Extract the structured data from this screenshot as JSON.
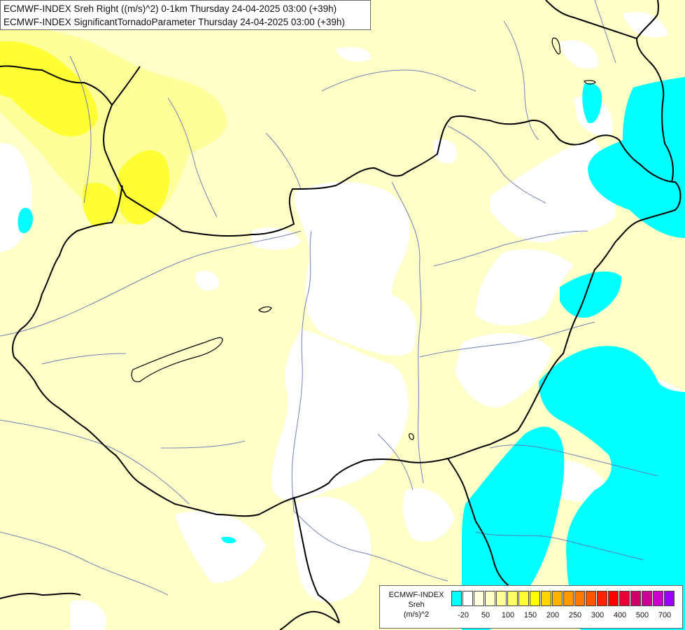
{
  "title": {
    "line1": "ECMWF-INDEX Sreh Right ((m/s)^2) 0-1km Thursday 24-04-2025 03:00 (+39h)",
    "line2": "ECMWF-INDEX SignificantTornadoParameter Thursday 24-04-2025 03:00 (+39h)"
  },
  "legend": {
    "source": "ECMWF-INDEX",
    "variable": "Sreh",
    "unit": "(m/s)^2",
    "colors": [
      "#00ffff",
      "#ffffff",
      "#ffffe0",
      "#ffffc8",
      "#ffff99",
      "#ffff66",
      "#ffff33",
      "#ffff00",
      "#ffd700",
      "#ffb300",
      "#ff9900",
      "#ff7700",
      "#ff5500",
      "#ff2200",
      "#ff0000",
      "#e60033",
      "#cc0066",
      "#cc0099",
      "#cc00cc",
      "#9900ff",
      "#7700cc",
      "#4b0099",
      "#000080"
    ],
    "ticks": [
      {
        "label": "-20",
        "index": 1
      },
      {
        "label": "50",
        "index": 3
      },
      {
        "label": "100",
        "index": 5
      },
      {
        "label": "150",
        "index": 7
      },
      {
        "label": "200",
        "index": 9
      },
      {
        "label": "250",
        "index": 11
      },
      {
        "label": "300",
        "index": 13
      },
      {
        "label": "400",
        "index": 15
      },
      {
        "label": "500",
        "index": 17
      },
      {
        "label": "700",
        "index": 19
      }
    ]
  },
  "map_colors": {
    "base": "#ffffc8",
    "none": "#ffffff",
    "low": "#ffff99",
    "mid": "#ffff33",
    "negative": "#00ffff",
    "border": "#000000",
    "river": "#5b6bb0"
  }
}
